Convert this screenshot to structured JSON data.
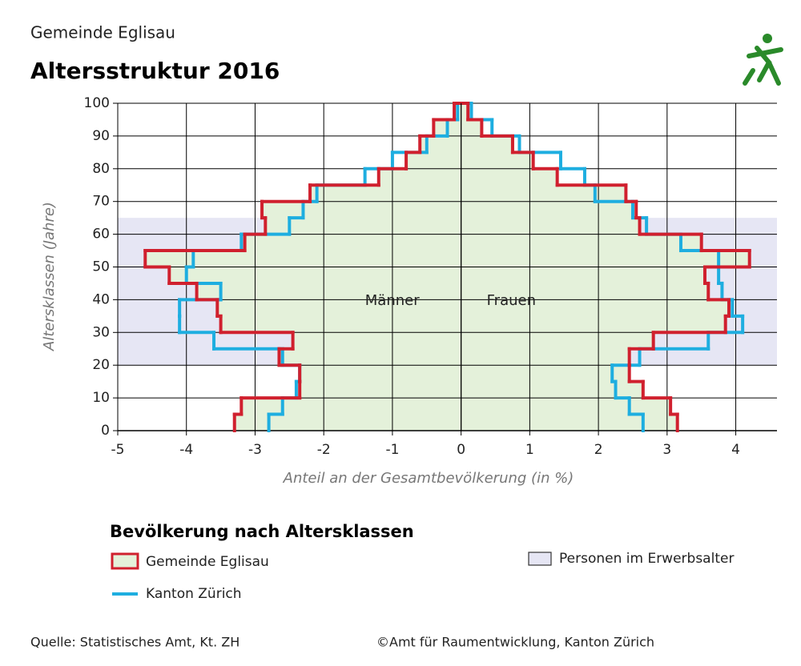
{
  "chart_data": {
    "type": "pyramid",
    "supertitle": "Gemeinde Eglisau",
    "title": "Altersstruktur 2016",
    "y_label": "Altersklassen (Jahre)",
    "x_label": "Anteil an der Gesamtbevölkerung (in %)",
    "side_labels": [
      "Männer",
      "Frauen"
    ],
    "bins": [
      0,
      5,
      10,
      15,
      20,
      25,
      30,
      35,
      40,
      45,
      50,
      55,
      60,
      65,
      70,
      75,
      80,
      85,
      90,
      95,
      100
    ],
    "series": [
      {
        "name": "Gemeinde Eglisau",
        "color": "#d0202e",
        "fill": "#e4f1da",
        "male": [
          -3.3,
          -3.2,
          -2.35,
          -2.35,
          -2.65,
          -2.45,
          -3.5,
          -3.55,
          -3.85,
          -4.25,
          -4.6,
          -3.15,
          -2.85,
          -2.9,
          -2.2,
          -1.2,
          -0.8,
          -0.6,
          -0.4,
          -0.1
        ],
        "female": [
          3.15,
          3.05,
          2.65,
          2.45,
          2.45,
          2.8,
          3.85,
          3.9,
          3.6,
          3.55,
          4.2,
          3.5,
          2.6,
          2.55,
          2.4,
          1.4,
          1.05,
          0.75,
          0.3,
          0.1
        ]
      },
      {
        "name": "Kanton Zürich",
        "color": "#1eaee0",
        "male": [
          -2.8,
          -2.6,
          -2.4,
          -2.35,
          -2.6,
          -3.6,
          -4.1,
          -4.1,
          -3.5,
          -4.0,
          -3.9,
          -3.2,
          -2.5,
          -2.3,
          -2.1,
          -1.4,
          -1.0,
          -0.5,
          -0.2,
          -0.05
        ],
        "female": [
          2.65,
          2.45,
          2.25,
          2.2,
          2.6,
          3.6,
          4.1,
          3.95,
          3.8,
          3.75,
          3.75,
          3.2,
          2.7,
          2.5,
          1.95,
          1.8,
          1.45,
          0.85,
          0.45,
          0.15
        ]
      }
    ],
    "band": {
      "name": "Personen im Erwerbsalter",
      "range": [
        20,
        65
      ],
      "color": "#e6e6f4"
    },
    "legend_title": "Bevölkerung nach Altersklassen",
    "xlim": [
      -5,
      4.6
    ],
    "ylim": [
      0,
      100
    ],
    "xticks": [
      -5,
      -4,
      -3,
      -2,
      -1,
      0,
      1,
      2,
      3,
      4
    ],
    "yticks": [
      0,
      10,
      20,
      30,
      40,
      50,
      60,
      70,
      80,
      90,
      100
    ],
    "grid": true,
    "source": "Quelle: Statistisches Amt, Kt. ZH",
    "copyright": "©Amt für Raumentwicklung, Kanton Zürich"
  }
}
